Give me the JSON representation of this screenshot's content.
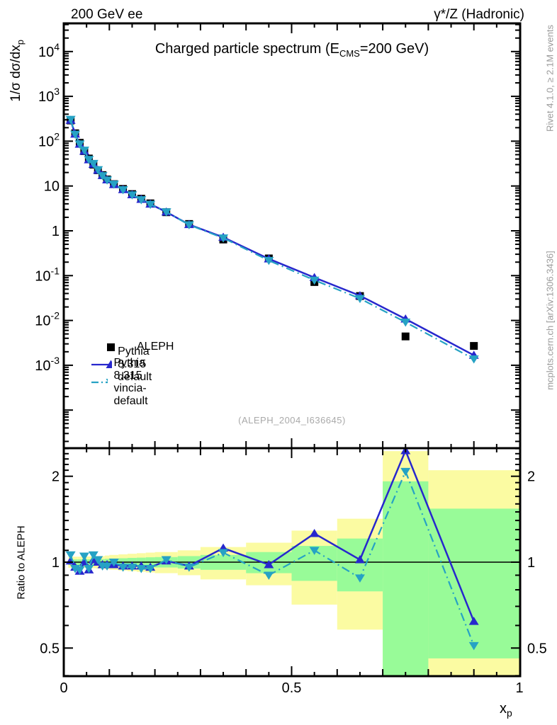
{
  "header": {
    "left": "200 GeV ee",
    "right": "γ*/Z (Hadronic)"
  },
  "title": {
    "prefix": "Charged particle spectrum (E",
    "sub": "CMS",
    "suffix": "=200 GeV)"
  },
  "watermark": "(ALEPH_2004_I636645)",
  "side_notes": {
    "top": "Rivet 4.1.0, ≥ 2.1M events",
    "bottom": "mcplots.cern.ch [arXiv:1306.3436]"
  },
  "axes": {
    "y_main": {
      "title_prefix": "1/σ  dσ/dx",
      "title_sub": "p",
      "tick_values": [
        10000,
        1000,
        100,
        10,
        1,
        0.1,
        0.01,
        0.001
      ],
      "tick_labels": [
        "10^4",
        "10^3",
        "10^2",
        "10",
        "1",
        "10^-1",
        "10^-2",
        "10^-3"
      ]
    },
    "y_ratio": {
      "title": "Ratio to ALEPH",
      "tick_values": [
        2,
        1,
        0.5
      ],
      "tick_labels": [
        "2",
        "1",
        "0.5"
      ]
    },
    "x": {
      "title_main": "x",
      "title_sub": "p",
      "tick_values": [
        0,
        0.5,
        1
      ],
      "tick_labels": [
        "0",
        "0.5",
        "1"
      ]
    }
  },
  "legend": {
    "items": [
      {
        "label": "ALEPH",
        "marker": "square",
        "line": "none",
        "color": "#000000"
      },
      {
        "label": "Pythia 8.315 default",
        "marker": "triangle-up",
        "line": "solid",
        "color": "#2727cd"
      },
      {
        "label": "Pythia 8.315 vincia-default",
        "marker": "triangle-down",
        "line": "dashdot",
        "color": "#26a2c4"
      }
    ]
  },
  "colors": {
    "aleph": "#000000",
    "pythia_default": "#2727cd",
    "pythia_vincia": "#26a2c4",
    "band_yellow": "#fbfba2",
    "band_green": "#98fb98",
    "frame": "#000000",
    "gray_text": "#9b9b9b"
  },
  "chart_data": {
    "type": "line",
    "title": "Charged particle spectrum (E_CMS=200 GeV)",
    "xlabel": "x_p",
    "ylabel_main": "1/σ dσ/dx_p",
    "ylabel_ratio": "Ratio to ALEPH",
    "x_range": [
      0,
      1.0016
    ],
    "y_main_range": [
      1.45e-05,
      42000
    ],
    "y_ratio_range": [
      0.398,
      2.51
    ],
    "y_main_scale": "log",
    "y_ratio_scale": "log",
    "x": [
      0.015,
      0.025,
      0.035,
      0.045,
      0.055,
      0.065,
      0.075,
      0.085,
      0.095,
      0.11,
      0.13,
      0.15,
      0.17,
      0.19,
      0.225,
      0.275,
      0.35,
      0.45,
      0.55,
      0.65,
      0.75,
      0.9
    ],
    "bin_edges": [
      0.01,
      0.02,
      0.03,
      0.04,
      0.05,
      0.06,
      0.07,
      0.08,
      0.09,
      0.1,
      0.12,
      0.14,
      0.16,
      0.18,
      0.2,
      0.25,
      0.3,
      0.4,
      0.5,
      0.6,
      0.7,
      0.8,
      1.0
    ],
    "series": [
      {
        "name": "ALEPH",
        "values": [
          290,
          150,
          92,
          60,
          41,
          30,
          22.5,
          17.5,
          14.0,
          11.0,
          8.6,
          6.6,
          5.2,
          4.1,
          2.6,
          1.42,
          0.64,
          0.242,
          0.072,
          0.035,
          0.0044,
          0.0027
        ]
      },
      {
        "name": "Pythia 8.315 default",
        "values": [
          293,
          144,
          85.6,
          60,
          38.5,
          30.6,
          22.5,
          17.2,
          13.7,
          10.8,
          8.34,
          6.4,
          5.04,
          3.94,
          2.63,
          1.38,
          0.717,
          0.237,
          0.0907,
          0.0357,
          0.0108,
          0.00167
        ]
      },
      {
        "name": "Pythia 8.315 vincia-default",
        "values": [
          307,
          142.5,
          86.5,
          63,
          39.0,
          31.8,
          23.0,
          17.0,
          13.6,
          11.0,
          8.26,
          6.34,
          4.94,
          3.9,
          2.65,
          1.36,
          0.691,
          0.218,
          0.0792,
          0.0308,
          0.00915,
          0.00138
        ]
      }
    ],
    "ratio": {
      "pythia_default": [
        1.01,
        0.96,
        0.93,
        1.0,
        0.94,
        1.02,
        1.0,
        0.98,
        0.98,
        0.98,
        0.97,
        0.97,
        0.97,
        0.96,
        1.01,
        0.97,
        1.12,
        0.98,
        1.26,
        1.02,
        2.46,
        0.62
      ],
      "pythia_vincia": [
        1.06,
        0.95,
        0.94,
        1.05,
        0.95,
        1.06,
        1.02,
        0.97,
        0.97,
        1.0,
        0.96,
        0.96,
        0.95,
        0.95,
        1.02,
        0.96,
        1.08,
        0.9,
        1.1,
        0.88,
        2.08,
        0.51
      ]
    },
    "bands": {
      "yellow_halfwidth": [
        0.045,
        0.045,
        0.045,
        0.045,
        0.047,
        0.047,
        0.05,
        0.05,
        0.055,
        0.06,
        0.065,
        0.07,
        0.075,
        0.08,
        0.085,
        0.1,
        0.13,
        0.17,
        0.29,
        0.42,
        1.45,
        1.1
      ],
      "green_halfwidth": [
        0.022,
        0.022,
        0.022,
        0.022,
        0.023,
        0.023,
        0.025,
        0.025,
        0.027,
        0.03,
        0.032,
        0.035,
        0.037,
        0.04,
        0.042,
        0.05,
        0.06,
        0.085,
        0.14,
        0.21,
        0.92,
        0.54
      ]
    },
    "legend_position": "upper-left-inside"
  }
}
